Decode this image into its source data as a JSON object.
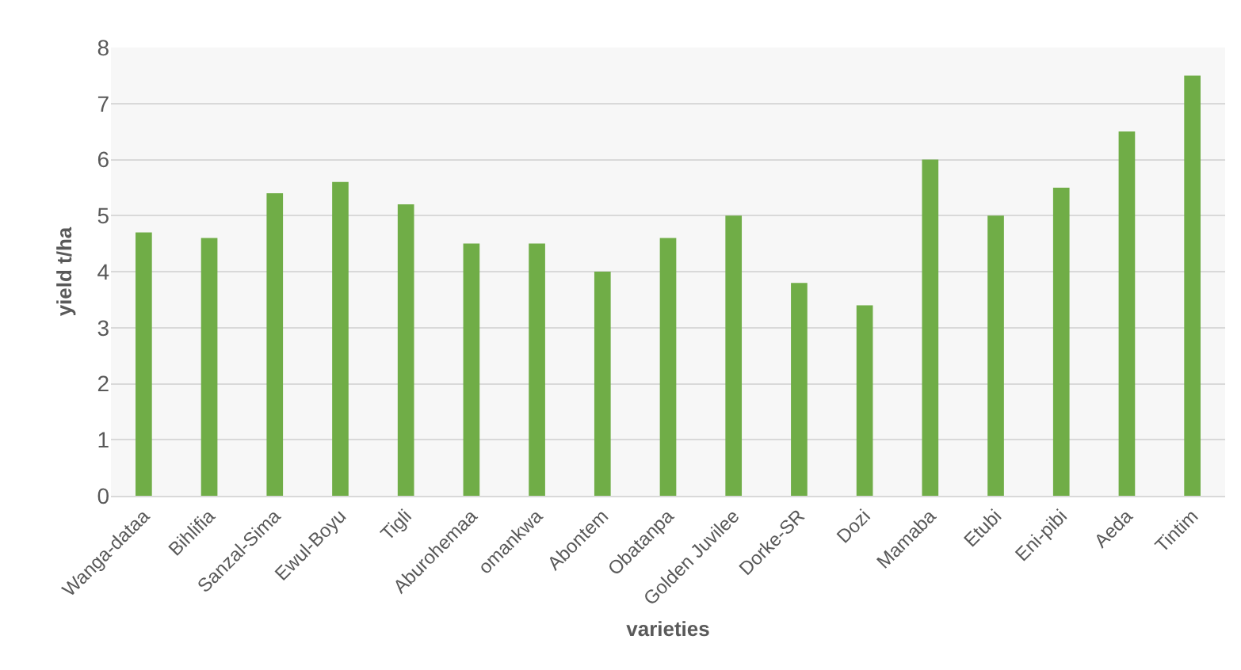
{
  "chart_data": {
    "type": "bar",
    "xlabel": "varieties",
    "ylabel": "yield t/ha",
    "categories": [
      "Wanga-dataa",
      "Bihlifia",
      "Sanzal-Sima",
      "Ewul-Boyu",
      "Tigli",
      "Aburohemaa",
      "omankwa",
      "Abontem",
      "Obatanpa",
      "Golden Juvilee",
      "Dorke-SR",
      "Dozi",
      "Mamaba",
      "Etubi",
      "Eni-pibi",
      "Aeda",
      "Tintim"
    ],
    "values": [
      4.7,
      4.6,
      5.4,
      5.6,
      5.2,
      4.5,
      4.5,
      4.0,
      4.6,
      5.0,
      3.8,
      3.4,
      6.0,
      5.0,
      5.5,
      6.5,
      7.5
    ],
    "color": "#70ad47",
    "ylim": [
      0,
      8
    ],
    "yticks": [
      0,
      1,
      2,
      3,
      4,
      5,
      6,
      7,
      8
    ],
    "grid": "y"
  }
}
